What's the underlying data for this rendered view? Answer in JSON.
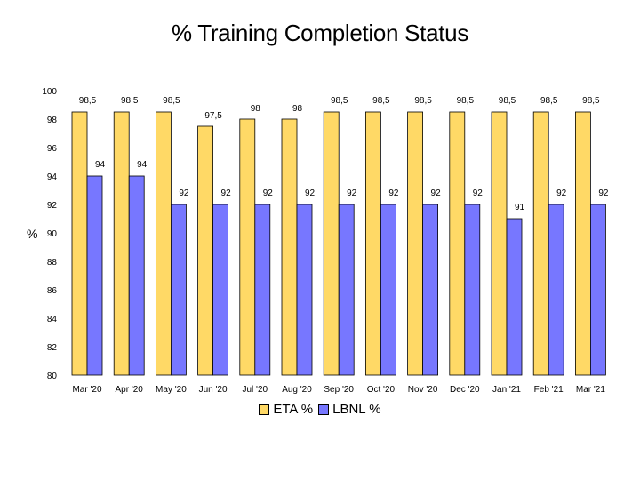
{
  "chart_data": {
    "type": "bar",
    "title": "% Training Completion Status",
    "ylabel": "%",
    "xlabel": "",
    "ylim": [
      80,
      100
    ],
    "yticks": [
      "80",
      "82",
      "84",
      "86",
      "88",
      "90",
      "92",
      "94",
      "96",
      "98",
      "100"
    ],
    "categories": [
      "Mar '20",
      "Apr '20",
      "May '20",
      "Jun '20",
      "Jul '20",
      "Aug '20",
      "Sep '20",
      "Oct '20",
      "Nov '20",
      "Dec '20",
      "Jan '21",
      "Feb '21",
      "Mar '21"
    ],
    "series": [
      {
        "name": "ETA %",
        "color": "#FFD966",
        "values": [
          98.5,
          98.5,
          98.5,
          97.5,
          98,
          98,
          98.5,
          98.5,
          98.5,
          98.5,
          98.5,
          98.5,
          98.5
        ],
        "labels": [
          "98,5",
          "98,5",
          "98,5",
          "97,5",
          "98",
          "98",
          "98,5",
          "98,5",
          "98,5",
          "98,5",
          "98,5",
          "98,5",
          "98,5"
        ]
      },
      {
        "name": "LBNL %",
        "color": "#7777FF",
        "values": [
          94,
          94,
          92,
          92,
          92,
          92,
          92,
          92,
          92,
          92,
          91,
          92,
          92
        ],
        "labels": [
          "94",
          "94",
          "92",
          "92",
          "92",
          "92",
          "92",
          "92",
          "92",
          "92",
          "91",
          "92",
          "92"
        ]
      }
    ],
    "grid": false,
    "legend_position": "bottom"
  }
}
